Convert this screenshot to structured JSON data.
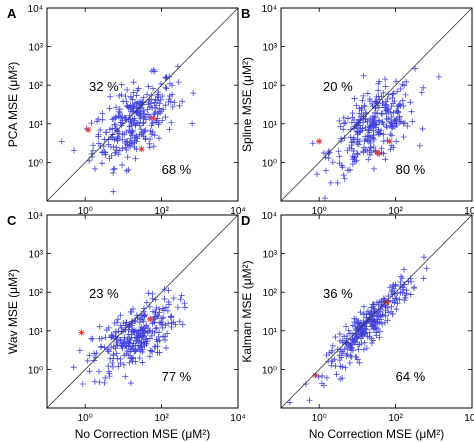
{
  "chart_data": [
    {
      "type": "scatter",
      "panel": "A",
      "ylabel": "PCA MSE (μM²)",
      "xlabel": "",
      "xlim": [
        0.1,
        10000
      ],
      "ylim": [
        0.1,
        10000
      ],
      "scale": "log",
      "xticks": [
        "10⁰",
        "10²",
        "10⁴"
      ],
      "yticks": [
        "10⁰",
        "10¹",
        "10²",
        "10³",
        "10⁴"
      ],
      "annotations": [
        {
          "text": "32 %",
          "region": "above-diagonal"
        },
        {
          "text": "68 %",
          "region": "below-diagonal"
        }
      ],
      "diagonal": "y = x",
      "center": {
        "x": 20,
        "y": 12
      },
      "spread": {
        "x": 0.55,
        "y": 0.45
      },
      "red_points": [
        {
          "x": 1.2,
          "y": 7
        },
        {
          "x": 60,
          "y": 14
        },
        {
          "x": 30,
          "y": 2.2
        }
      ]
    },
    {
      "type": "scatter",
      "panel": "B",
      "ylabel": "Spline MSE (μM²)",
      "xlabel": "",
      "xlim": [
        0.1,
        10000
      ],
      "ylim": [
        0.1,
        10000
      ],
      "scale": "log",
      "xticks": [
        "10⁰",
        "10²",
        "10⁴"
      ],
      "yticks": [
        "10⁰",
        "10¹",
        "10²",
        "10³",
        "10⁴"
      ],
      "annotations": [
        {
          "text": "20 %",
          "region": "above-diagonal"
        },
        {
          "text": "80 %",
          "region": "below-diagonal"
        }
      ],
      "diagonal": "y = x",
      "center": {
        "x": 25,
        "y": 8
      },
      "spread": {
        "x": 0.55,
        "y": 0.45
      },
      "red_points": [
        {
          "x": 1.0,
          "y": 3.5
        },
        {
          "x": 70,
          "y": 3.5
        },
        {
          "x": 35,
          "y": 1.8
        }
      ]
    },
    {
      "type": "scatter",
      "panel": "C",
      "ylabel": "Wav MSE (μM²)",
      "xlabel": "No Correction MSE (μM²)",
      "xlim": [
        0.1,
        10000
      ],
      "ylim": [
        0.1,
        10000
      ],
      "scale": "log",
      "xticks": [
        "10⁰",
        "10²",
        "10⁴"
      ],
      "yticks": [
        "10⁰",
        "10¹",
        "10²",
        "10³",
        "10⁴"
      ],
      "annotations": [
        {
          "text": "23 %",
          "region": "above-diagonal"
        },
        {
          "text": "77 %",
          "region": "below-diagonal"
        }
      ],
      "diagonal": "y = x",
      "center": {
        "x": 20,
        "y": 7
      },
      "spread": {
        "x": 0.55,
        "y": 0.4
      },
      "red_points": [
        {
          "x": 0.8,
          "y": 9
        },
        {
          "x": 50,
          "y": 20
        }
      ]
    },
    {
      "type": "scatter",
      "panel": "D",
      "ylabel": "Kalman MSE (μM²)",
      "xlabel": "No Correction MSE (μM²)",
      "xlim": [
        0.1,
        10000
      ],
      "ylim": [
        0.1,
        10000
      ],
      "scale": "log",
      "xticks": [
        "10⁰",
        "10²",
        "10⁴"
      ],
      "yticks": [
        "10⁰",
        "10¹",
        "10²",
        "10³",
        "10⁴"
      ],
      "annotations": [
        {
          "text": "36 %",
          "region": "above-diagonal"
        },
        {
          "text": "64 %",
          "region": "below-diagonal"
        }
      ],
      "diagonal": "y = x",
      "center": {
        "x": 20,
        "y": 15
      },
      "spread": {
        "x": 0.55,
        "y": 0.08
      },
      "red_points": [
        {
          "x": 0.8,
          "y": 0.7
        },
        {
          "x": 60,
          "y": 55
        }
      ]
    }
  ]
}
